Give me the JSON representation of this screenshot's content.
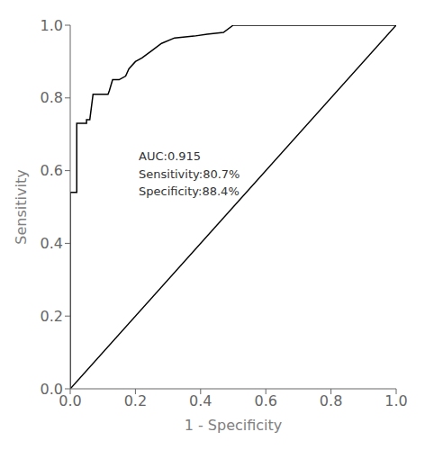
{
  "chart_data": {
    "type": "line",
    "xlabel": "1 - Specificity",
    "ylabel": "Sensitivity",
    "series": [
      {
        "x": [
          0.0,
          0.0,
          0.01,
          0.02,
          0.02,
          0.05,
          0.05,
          0.06,
          0.07,
          0.116,
          0.12,
          0.13,
          0.15,
          0.17,
          0.18,
          0.2,
          0.22,
          0.25,
          0.28,
          0.32,
          0.38,
          0.42,
          0.47,
          0.5,
          0.55,
          0.6,
          0.7,
          0.8,
          0.9,
          1.0
        ],
        "values": [
          0.0,
          0.54,
          0.54,
          0.54,
          0.73,
          0.73,
          0.74,
          0.74,
          0.81,
          0.81,
          0.82,
          0.85,
          0.85,
          0.86,
          0.88,
          0.9,
          0.91,
          0.93,
          0.95,
          0.965,
          0.97,
          0.975,
          0.98,
          1.0,
          1.0,
          1.0,
          1.0,
          1.0,
          1.0,
          1.0
        ],
        "color": "#000000"
      },
      {
        "x": [
          0.0,
          1.0
        ],
        "values": [
          0.0,
          1.0
        ],
        "color": "#000000"
      }
    ],
    "xlim": [
      0.0,
      1.0
    ],
    "ylim": [
      0.0,
      1.0
    ],
    "xticks": [
      {
        "value": 0.0,
        "label": "0.0"
      },
      0.2,
      0.4,
      0.6,
      0.8,
      {
        "value": 1.0,
        "label": "1.0"
      }
    ],
    "yticks": [
      {
        "value": 0.0,
        "label": "0.0"
      },
      0.2,
      0.4,
      0.6,
      0.8,
      {
        "value": 1.0,
        "label": "1.0"
      }
    ],
    "annotations": [
      {
        "text": "AUC:0.915\nSensitivity:80.7%\nSpecificity:88.4%",
        "x": 0.21,
        "y": 0.66
      }
    ],
    "grid": false
  }
}
